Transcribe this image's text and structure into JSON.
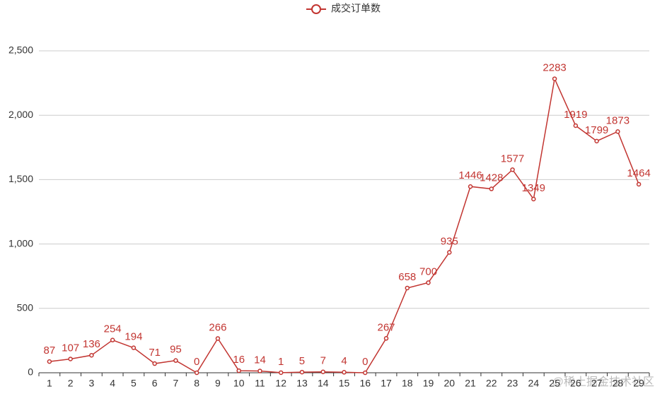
{
  "chart_data": {
    "type": "line",
    "legend": "成交订单数",
    "categories": [
      "1",
      "2",
      "3",
      "4",
      "5",
      "6",
      "7",
      "8",
      "9",
      "10",
      "11",
      "12",
      "13",
      "14",
      "15",
      "16",
      "17",
      "18",
      "19",
      "20",
      "21",
      "22",
      "23",
      "24",
      "25",
      "26",
      "27",
      "28",
      "29"
    ],
    "series": [
      {
        "name": "成交订单数",
        "color": "#c23531",
        "values": [
          87,
          107,
          136,
          254,
          194,
          71,
          95,
          0,
          266,
          16,
          14,
          1,
          5,
          7,
          4,
          0,
          267,
          658,
          700,
          935,
          1446,
          1428,
          1577,
          1349,
          2283,
          1919,
          1799,
          1873,
          1464
        ]
      }
    ],
    "ylim": [
      0,
      2500
    ],
    "yticks": [
      0,
      500,
      {
        "value": 1000,
        "label": "1,000"
      },
      {
        "value": 1500,
        "label": "1,500"
      },
      {
        "value": 2000,
        "label": "2,000"
      },
      {
        "value": 2500,
        "label": "2,500"
      }
    ],
    "grid": true,
    "watermark": "@稀土掘金技术社区"
  }
}
